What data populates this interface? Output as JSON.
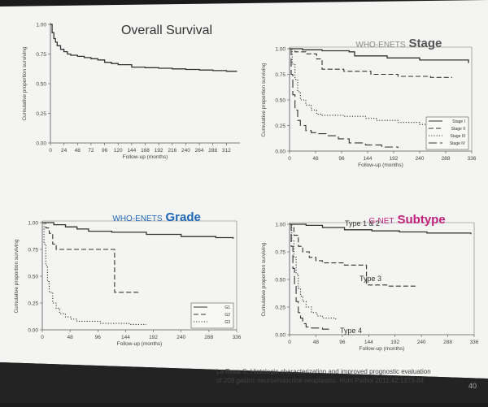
{
  "citation": {
    "line1": "La Rosa S. Histologic characterization and improved prognostic evaluation",
    "line2": "of 209 gastric neuroendocrine neoplasms. Hum Pathol 2011;42:1373-84"
  },
  "page_number": "40",
  "colors": {
    "slide": "#f4f4f2",
    "curve": "#333333",
    "title_blue": "#1f66b5",
    "title_pink": "#c0207a",
    "title_gray": "#888888"
  },
  "chart_data": [
    {
      "type": "line",
      "title": "Overall Survival",
      "ylabel": "Cumulative proportion surviving",
      "xlabel": "Follow-up (months)",
      "xlim": [
        0,
        336
      ],
      "ylim": [
        0,
        1
      ],
      "x_ticks": [
        "0",
        "24",
        "48",
        "72",
        "96",
        "120",
        "144",
        "168",
        "192",
        "216",
        "240",
        "264",
        "288",
        "312"
      ],
      "y_ticks": [
        "0.00",
        "0.25",
        "0.50",
        "0.75",
        "1.00"
      ],
      "legend": [],
      "series": [
        {
          "style": "solid",
          "x": [
            0,
            3,
            6,
            9,
            12,
            18,
            24,
            30,
            36,
            48,
            60,
            72,
            84,
            96,
            108,
            120,
            144,
            168,
            192,
            216,
            240,
            264,
            288,
            312,
            330
          ],
          "y": [
            1.0,
            0.93,
            0.88,
            0.85,
            0.82,
            0.79,
            0.77,
            0.75,
            0.74,
            0.73,
            0.72,
            0.71,
            0.7,
            0.68,
            0.67,
            0.66,
            0.64,
            0.635,
            0.63,
            0.625,
            0.62,
            0.615,
            0.61,
            0.605,
            0.6
          ]
        }
      ]
    },
    {
      "type": "line",
      "title_prefix": "WHO-ENETS",
      "title": "Stage",
      "ylabel": "Cumulative proportion surviving",
      "xlabel": "Follow-up (months)",
      "xlim": [
        0,
        336
      ],
      "ylim": [
        0,
        1
      ],
      "x_ticks": [
        "0",
        "48",
        "96",
        "144",
        "192",
        "240",
        "288",
        "336"
      ],
      "y_ticks": [
        "0.00",
        "0.25",
        "0.50",
        "0.75",
        "1.00"
      ],
      "legend_position": "bottom-right",
      "legend": [
        "Stage I",
        "Stage II",
        "Stage III",
        "Stage IV"
      ],
      "series": [
        {
          "name": "Stage I",
          "style": "solid",
          "x": [
            0,
            24,
            60,
            110,
            120,
            180,
            240,
            330
          ],
          "y": [
            1.0,
            0.99,
            0.98,
            0.97,
            0.93,
            0.91,
            0.89,
            0.86
          ]
        },
        {
          "name": "Stage II",
          "style": "dashed",
          "x": [
            0,
            10,
            30,
            50,
            60,
            100,
            150,
            200,
            260,
            300
          ],
          "y": [
            1.0,
            0.97,
            0.95,
            0.9,
            0.8,
            0.78,
            0.75,
            0.73,
            0.72,
            0.72
          ]
        },
        {
          "name": "Stage III",
          "style": "dotted",
          "x": [
            0,
            5,
            10,
            15,
            20,
            30,
            40,
            50,
            60,
            80,
            100,
            140,
            160,
            200,
            240,
            270
          ],
          "y": [
            1.0,
            0.85,
            0.7,
            0.58,
            0.5,
            0.45,
            0.4,
            0.36,
            0.35,
            0.35,
            0.34,
            0.32,
            0.3,
            0.28,
            0.26,
            0.24
          ]
        },
        {
          "name": "Stage IV",
          "style": "longdash",
          "x": [
            0,
            3,
            6,
            10,
            15,
            20,
            30,
            40,
            50,
            70,
            90,
            110,
            140,
            170,
            200
          ],
          "y": [
            1.0,
            0.75,
            0.55,
            0.4,
            0.3,
            0.25,
            0.2,
            0.18,
            0.17,
            0.15,
            0.12,
            0.08,
            0.06,
            0.04,
            0.03
          ]
        }
      ]
    },
    {
      "type": "line",
      "title_prefix": "WHO-ENETS",
      "title": "Grade",
      "ylabel": "Cumulative proportion surviving",
      "xlabel": "Follow-up (months)",
      "xlim": [
        0,
        336
      ],
      "ylim": [
        0,
        1
      ],
      "x_ticks": [
        "0",
        "48",
        "96",
        "144",
        "192",
        "240",
        "288",
        "336"
      ],
      "y_ticks": [
        "0.00",
        "0.25",
        "0.50",
        "0.75",
        "1.00"
      ],
      "legend_position": "bottom-right",
      "legend": [
        "G1",
        "G2",
        "G3"
      ],
      "series": [
        {
          "name": "G1",
          "style": "solid",
          "x": [
            0,
            20,
            40,
            60,
            80,
            100,
            120,
            180,
            240,
            300,
            330
          ],
          "y": [
            1.0,
            0.98,
            0.96,
            0.94,
            0.92,
            0.92,
            0.91,
            0.89,
            0.87,
            0.86,
            0.85
          ]
        },
        {
          "name": "G2",
          "style": "dashed",
          "x": [
            0,
            6,
            12,
            18,
            24,
            120,
            125,
            170
          ],
          "y": [
            1.0,
            0.95,
            0.9,
            0.8,
            0.75,
            0.75,
            0.35,
            0.35
          ]
        },
        {
          "name": "G3",
          "style": "dotted",
          "x": [
            0,
            3,
            6,
            9,
            12,
            18,
            24,
            30,
            40,
            50,
            60,
            100,
            150,
            180
          ],
          "y": [
            1.0,
            0.8,
            0.6,
            0.45,
            0.35,
            0.25,
            0.2,
            0.15,
            0.12,
            0.1,
            0.08,
            0.06,
            0.05,
            0.05
          ]
        }
      ]
    },
    {
      "type": "line",
      "title_prefix": "G-NET",
      "title": "Subtype",
      "ylabel": "Cumulative proportion surviving",
      "xlabel": "Follow-up (months)",
      "xlim": [
        0,
        336
      ],
      "ylim": [
        0,
        1
      ],
      "x_ticks": [
        "0",
        "48",
        "96",
        "144",
        "192",
        "240",
        "288",
        "336"
      ],
      "y_ticks": [
        "0.00",
        "0.25",
        "0.50",
        "0.75",
        "1.00"
      ],
      "legend": [],
      "curve_labels": [
        "Type 1 & 2",
        "Type 3",
        "Type 4"
      ],
      "series": [
        {
          "style": "solid",
          "x": [
            0,
            30,
            60,
            100,
            150,
            200,
            250,
            300,
            330
          ],
          "y": [
            1.0,
            0.99,
            0.97,
            0.95,
            0.94,
            0.93,
            0.92,
            0.92,
            0.91
          ]
        },
        {
          "style": "dashed",
          "x": [
            0,
            8,
            16,
            24,
            36,
            48,
            60,
            100,
            130,
            140,
            180,
            230
          ],
          "y": [
            1.0,
            0.9,
            0.8,
            0.75,
            0.7,
            0.67,
            0.65,
            0.63,
            0.63,
            0.45,
            0.44,
            0.44
          ]
        },
        {
          "style": "dotted",
          "x": [
            0,
            4,
            8,
            12,
            16,
            20,
            24,
            30,
            40,
            50,
            60,
            72,
            84
          ],
          "y": [
            1.0,
            0.85,
            0.7,
            0.55,
            0.42,
            0.35,
            0.3,
            0.25,
            0.2,
            0.17,
            0.15,
            0.15,
            0.14
          ]
        },
        {
          "style": "longdash",
          "x": [
            0,
            3,
            6,
            9,
            12,
            16,
            20,
            24,
            30,
            40,
            60,
            72
          ],
          "y": [
            1.0,
            0.8,
            0.6,
            0.45,
            0.3,
            0.2,
            0.15,
            0.1,
            0.07,
            0.06,
            0.05,
            0.05
          ]
        }
      ]
    }
  ]
}
